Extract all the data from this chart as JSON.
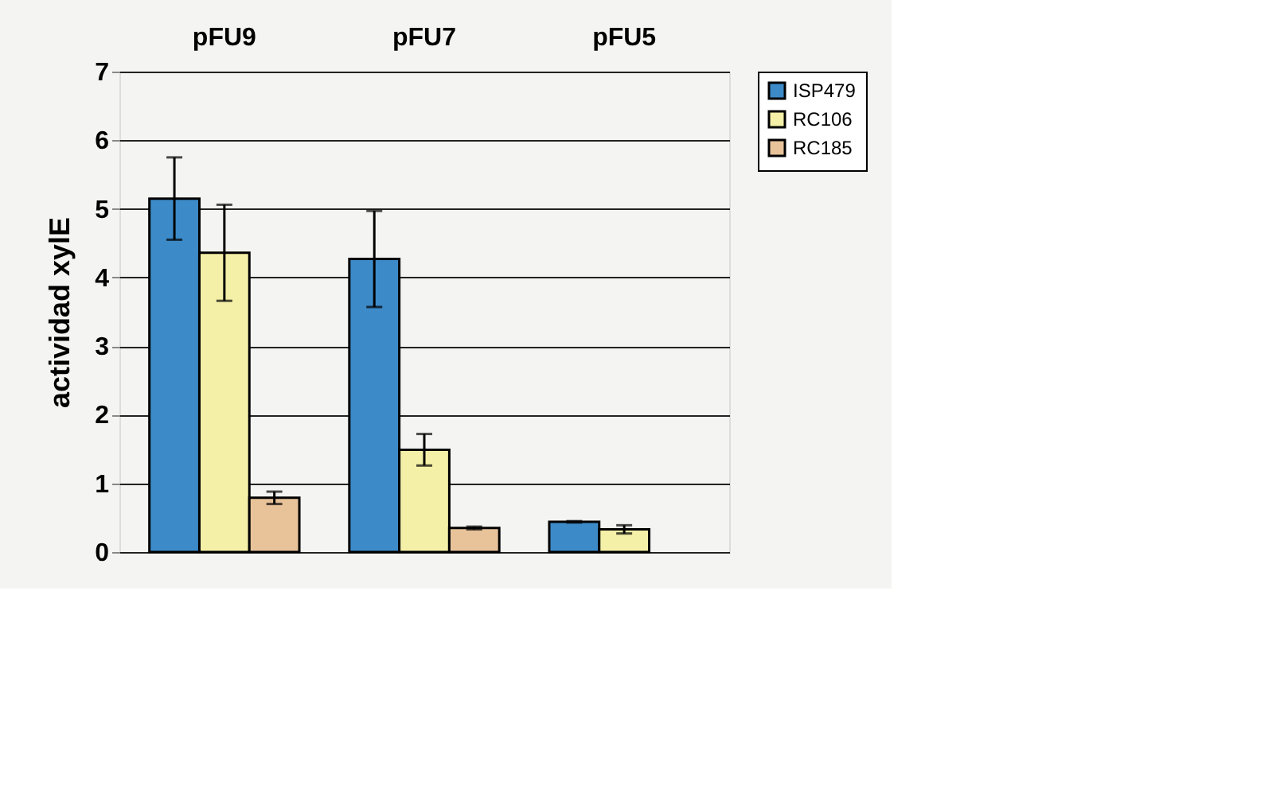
{
  "chart_data": {
    "type": "bar",
    "ylabel": "actividad xylE",
    "categories": [
      "pFU9",
      "pFU7",
      "pFU5"
    ],
    "series": [
      {
        "name": "ISP479",
        "color": "#3d8ac8",
        "values": [
          5.15,
          4.27,
          0.44
        ],
        "errors": [
          0.6,
          0.7,
          0.01
        ]
      },
      {
        "name": "RC106",
        "color": "#f5f0a8",
        "values": [
          4.36,
          1.49,
          0.33
        ],
        "errors": [
          0.7,
          0.23,
          0.06
        ]
      },
      {
        "name": "RC185",
        "color": "#e8c39a",
        "values": [
          0.79,
          0.35,
          null
        ],
        "errors": [
          0.09,
          0.02,
          null
        ]
      }
    ],
    "ylim": [
      0,
      7
    ],
    "yticks": [
      0,
      1,
      2,
      3,
      4,
      5,
      6,
      7
    ],
    "grid": "y",
    "legend": "top right"
  }
}
